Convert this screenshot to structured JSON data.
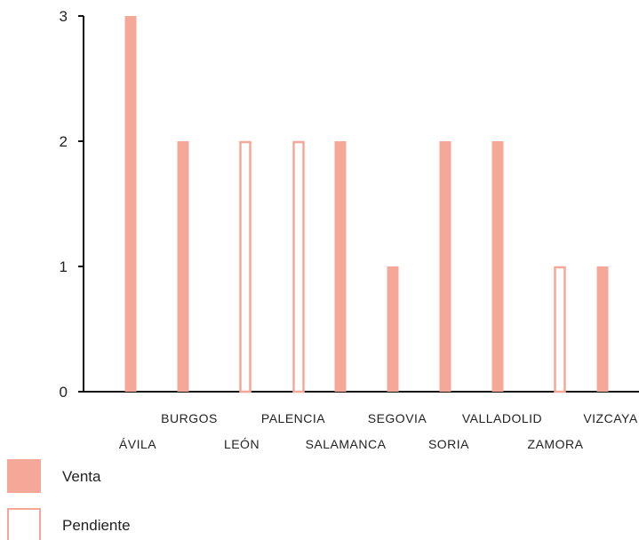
{
  "chart_data": {
    "type": "bar",
    "categories": [
      "ÁVILA",
      "BURGOS",
      "LEÓN",
      "PALENCIA",
      "SALAMANCA",
      "SEGOVIA",
      "SORIA",
      "VALLADOLID",
      "ZAMORA",
      "VIZCAYA"
    ],
    "series": [
      {
        "name": "Venta",
        "style": "filled",
        "color": "#f5a898",
        "values": [
          3,
          2,
          0,
          0,
          2,
          1,
          2,
          2,
          0,
          1
        ]
      },
      {
        "name": "Pendiente",
        "style": "outline",
        "color": "#f5a898",
        "values": [
          0,
          0,
          2,
          2,
          0,
          0,
          0,
          0,
          1,
          0
        ]
      }
    ],
    "y_ticks": [
      "0",
      "1",
      "2",
      "3"
    ],
    "ylim": [
      0,
      3
    ],
    "grid": false,
    "legend_position": "bottom-left",
    "title": "",
    "xlabel": "",
    "ylabel": ""
  }
}
